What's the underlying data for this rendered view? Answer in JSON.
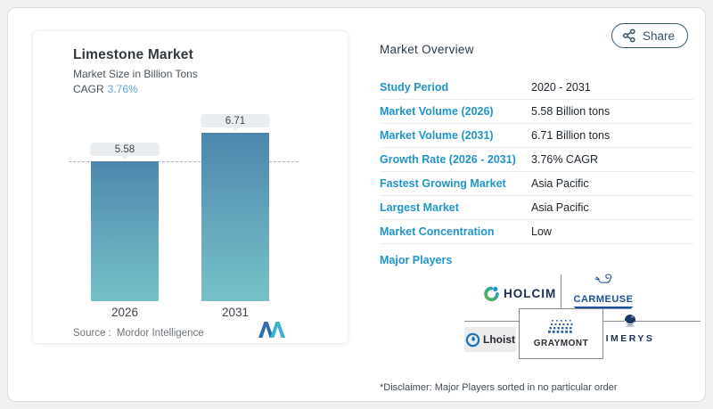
{
  "share": {
    "label": "Share"
  },
  "chart_card": {
    "title": "Limestone Market",
    "subtitle": "Market Size in Billion Tons",
    "cagr_label": "CAGR",
    "cagr_value": "3.76%",
    "source_label": "Source :",
    "source_value": "Mordor Intelligence"
  },
  "chart_data": {
    "type": "bar",
    "title": "Limestone Market",
    "ylabel": "Market Size in Billion Tons",
    "categories": [
      "2026",
      "2031"
    ],
    "values": [
      5.58,
      6.71
    ],
    "data_labels": [
      "5.58",
      "6.71"
    ],
    "reference_line_value": 5.58,
    "ylim": [
      0,
      6.71
    ],
    "grid": false,
    "legend": false,
    "bar_gradient_top": "#4d86ad",
    "bar_gradient_bottom": "#76c1c6"
  },
  "overview": {
    "title": "Market Overview",
    "rows": [
      {
        "label": "Study Period",
        "value": "2020 - 2031"
      },
      {
        "label": "Market Volume (2026)",
        "value": "5.58 Billion tons"
      },
      {
        "label": "Market Volume (2031)",
        "value": "6.71 Billion tons"
      },
      {
        "label": "Growth Rate (2026 - 2031)",
        "value": "3.76% CAGR"
      },
      {
        "label": "Fastest Growing Market",
        "value": "Asia Pacific"
      },
      {
        "label": "Largest Market",
        "value": "Asia Pacific"
      },
      {
        "label": "Market Concentration",
        "value": "Low"
      }
    ],
    "major_players_label": "Major Players",
    "players": {
      "holcim": "HOLCIM",
      "carmeuse": "CARMEUSE",
      "lhoist": "Lhoist",
      "graymont": "GRAYMONT",
      "imerys": "IMERYS"
    },
    "disclaimer": "*Disclaimer: Major Players sorted in no particular order"
  },
  "colors": {
    "accent_blue": "#2094c9",
    "cagr_blue": "#5d9fd2",
    "share_navy": "#33566c",
    "bar_top": "#4d86ad",
    "bar_bottom": "#76c1c6",
    "dashed_line": "#9cb8ca",
    "pill_bg": "#e9edf0",
    "logo_navy": "#1b2d4f"
  }
}
